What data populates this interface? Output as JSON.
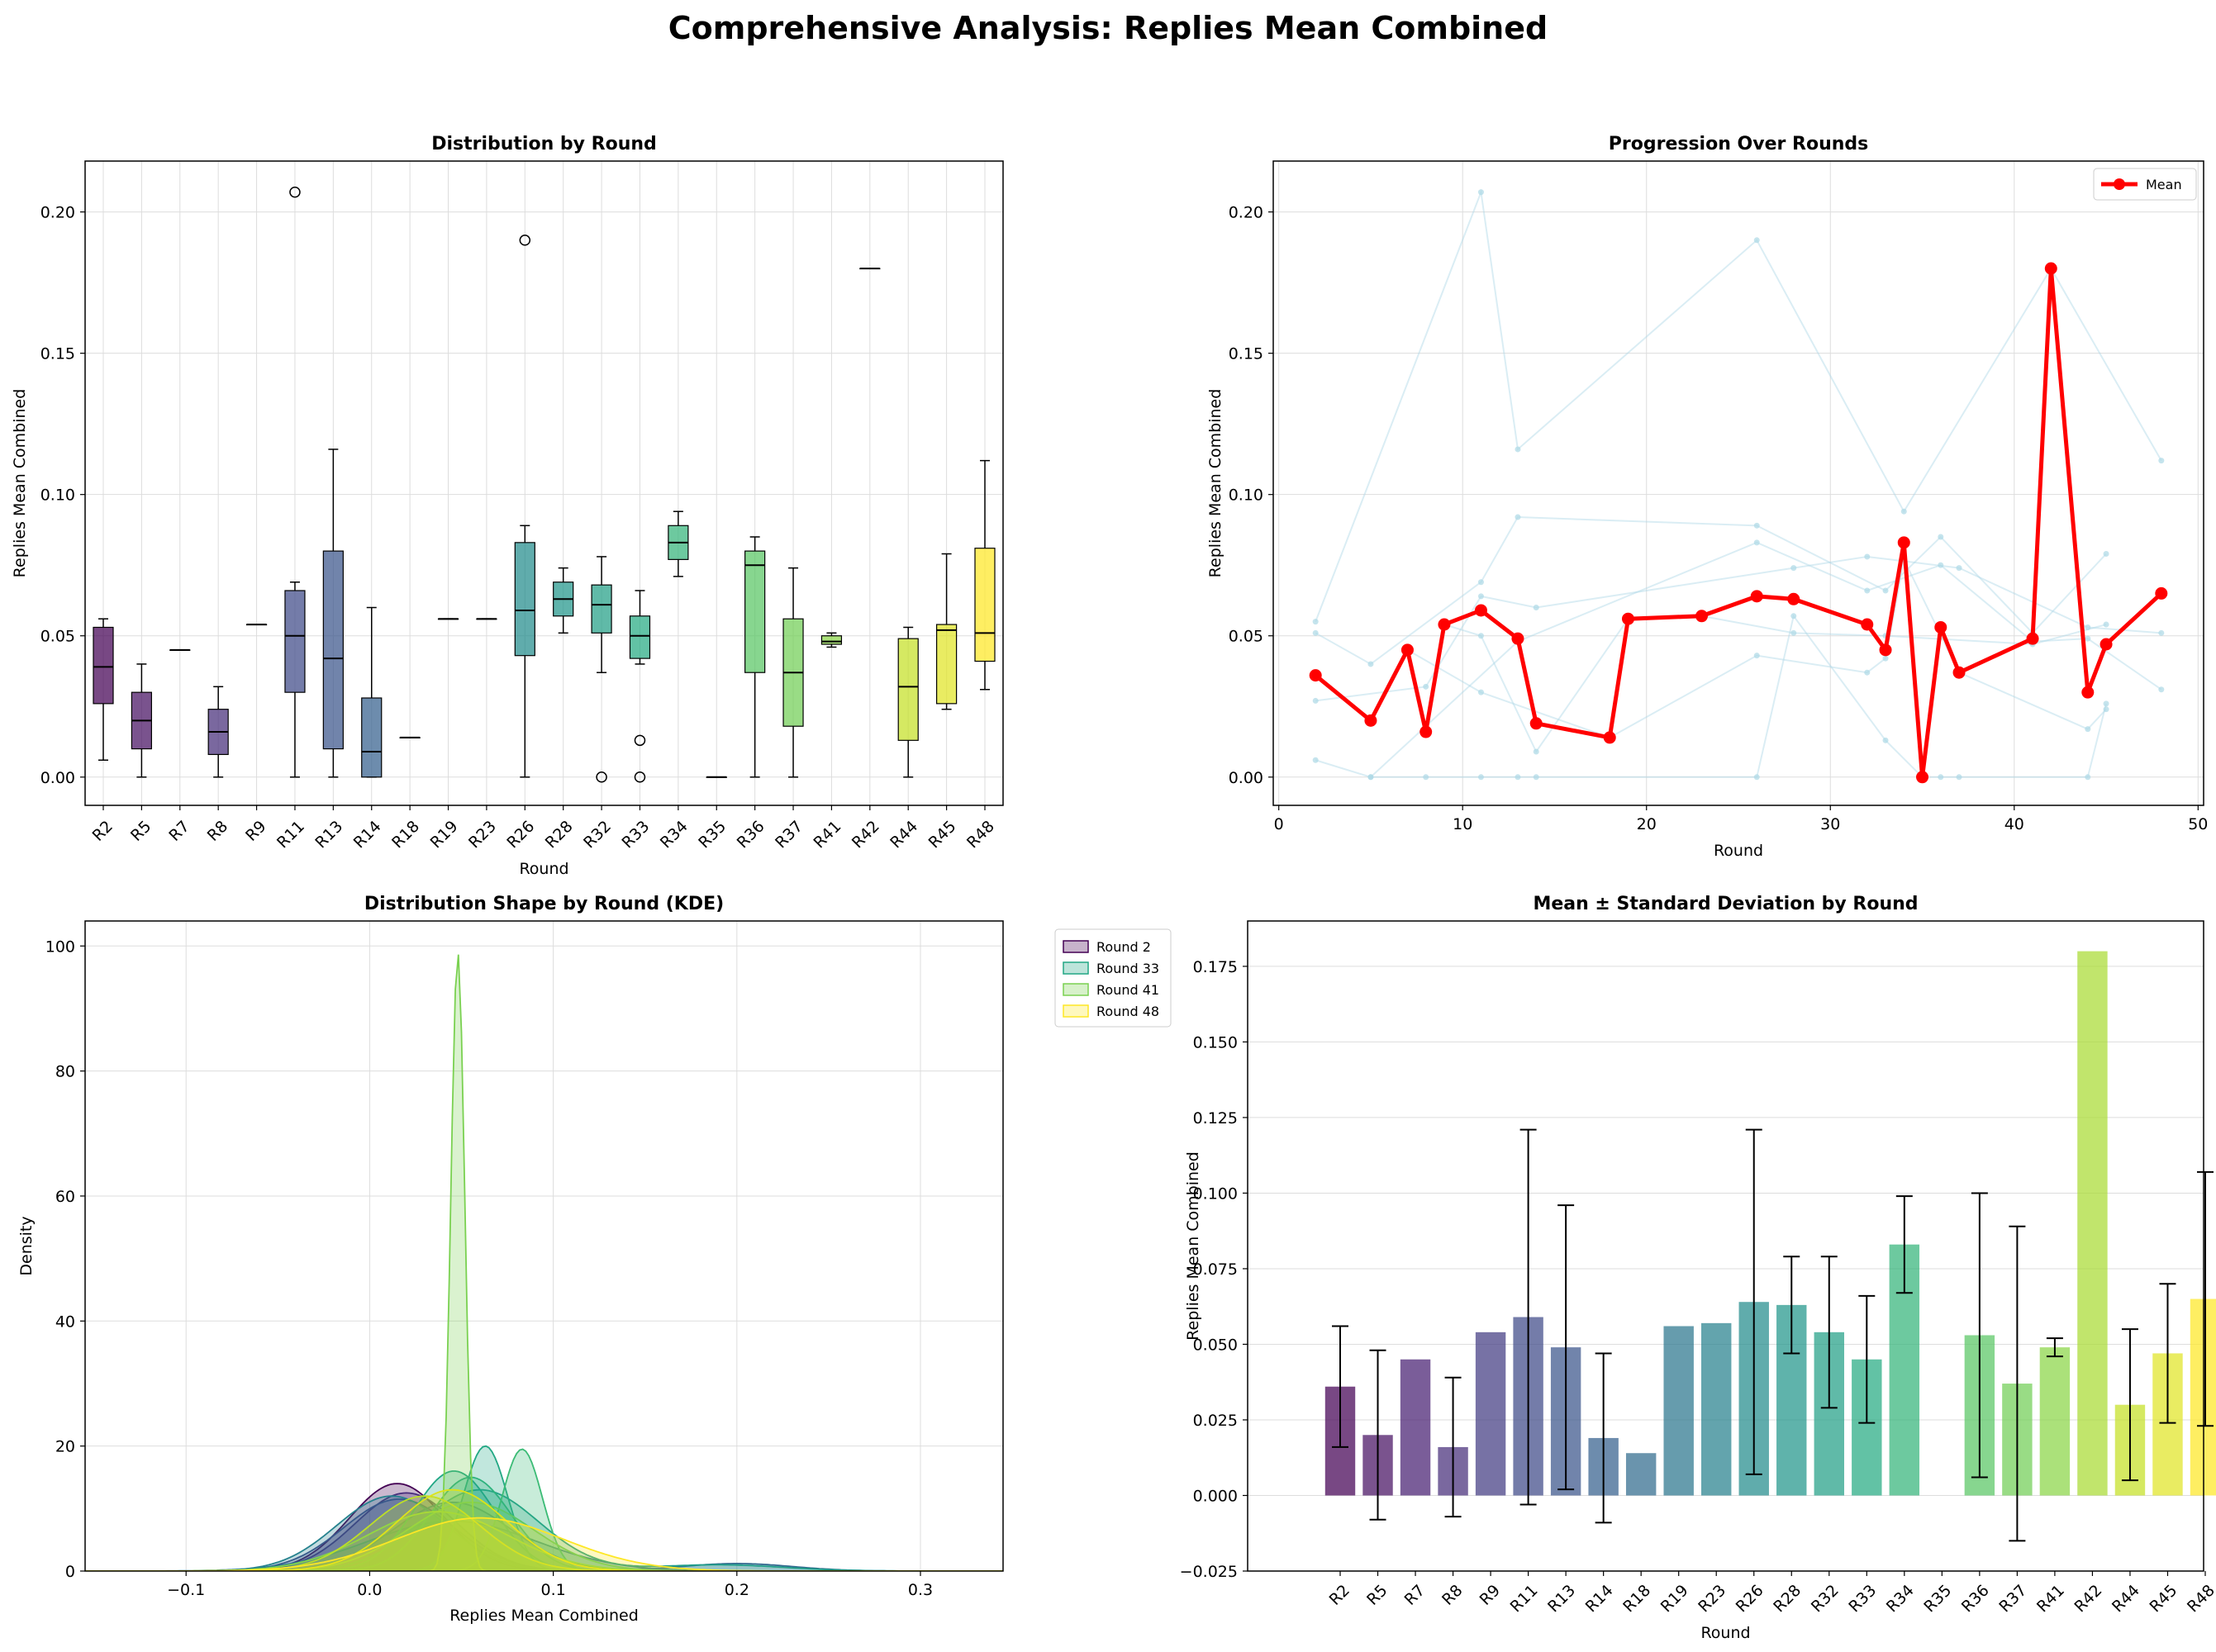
{
  "figure": {
    "suptitle": "Comprehensive Analysis: Replies Mean Combined"
  },
  "colors": {
    "viridis": [
      "#440154",
      "#482475",
      "#414487",
      "#355f8d",
      "#2a788e",
      "#21918c",
      "#22a884",
      "#44bf70",
      "#7ad151",
      "#bddf26",
      "#fde725"
    ],
    "mean_line": "#ff0000",
    "trajectory": "#add8e6",
    "grid": "#dddddd"
  },
  "rounds": [
    "R2",
    "R5",
    "R7",
    "R8",
    "R9",
    "R11",
    "R13",
    "R14",
    "R18",
    "R19",
    "R23",
    "R26",
    "R28",
    "R32",
    "R33",
    "R34",
    "R35",
    "R36",
    "R37",
    "R41",
    "R42",
    "R44",
    "R45",
    "R48"
  ],
  "round_numbers": [
    2,
    5,
    7,
    8,
    9,
    11,
    13,
    14,
    18,
    19,
    23,
    26,
    28,
    32,
    33,
    34,
    35,
    36,
    37,
    41,
    42,
    44,
    45,
    48
  ],
  "chart_data": [
    {
      "type": "box",
      "title": "Distribution by Round",
      "xlabel": "Round",
      "ylabel": "Replies Mean Combined",
      "ylim": [
        -0.01,
        0.218
      ],
      "yticks": [
        0.0,
        0.05,
        0.1,
        0.15,
        0.2
      ],
      "ytick_labels": [
        "0.00",
        "0.05",
        "0.10",
        "0.15",
        "0.20"
      ],
      "grid": true,
      "boxes": [
        {
          "round": "R2",
          "whislo": 0.006,
          "q1": 0.026,
          "median": 0.039,
          "q3": 0.053,
          "whishi": 0.056,
          "fliers": []
        },
        {
          "round": "R5",
          "whislo": 0.0,
          "q1": 0.01,
          "median": 0.02,
          "q3": 0.03,
          "whishi": 0.04,
          "fliers": []
        },
        {
          "round": "R7",
          "whislo": 0.045,
          "q1": 0.045,
          "median": 0.045,
          "q3": 0.045,
          "whishi": 0.045,
          "fliers": []
        },
        {
          "round": "R8",
          "whislo": 0.0,
          "q1": 0.008,
          "median": 0.016,
          "q3": 0.024,
          "whishi": 0.032,
          "fliers": []
        },
        {
          "round": "R9",
          "whislo": 0.054,
          "q1": 0.054,
          "median": 0.054,
          "q3": 0.054,
          "whishi": 0.054,
          "fliers": []
        },
        {
          "round": "R11",
          "whislo": 0.0,
          "q1": 0.03,
          "median": 0.05,
          "q3": 0.066,
          "whishi": 0.069,
          "fliers": [
            0.207
          ]
        },
        {
          "round": "R13",
          "whislo": 0.0,
          "q1": 0.01,
          "median": 0.042,
          "q3": 0.08,
          "whishi": 0.116,
          "fliers": []
        },
        {
          "round": "R14",
          "whislo": 0.0,
          "q1": 0.0,
          "median": 0.009,
          "q3": 0.028,
          "whishi": 0.06,
          "fliers": []
        },
        {
          "round": "R18",
          "whislo": 0.014,
          "q1": 0.014,
          "median": 0.014,
          "q3": 0.014,
          "whishi": 0.014,
          "fliers": []
        },
        {
          "round": "R19",
          "whislo": 0.056,
          "q1": 0.056,
          "median": 0.056,
          "q3": 0.056,
          "whishi": 0.056,
          "fliers": []
        },
        {
          "round": "R23",
          "whislo": 0.056,
          "q1": 0.056,
          "median": 0.056,
          "q3": 0.056,
          "whishi": 0.056,
          "fliers": []
        },
        {
          "round": "R26",
          "whislo": 0.0,
          "q1": 0.043,
          "median": 0.059,
          "q3": 0.083,
          "whishi": 0.089,
          "fliers": [
            0.19
          ]
        },
        {
          "round": "R28",
          "whislo": 0.051,
          "q1": 0.057,
          "median": 0.063,
          "q3": 0.069,
          "whishi": 0.074,
          "fliers": []
        },
        {
          "round": "R32",
          "whislo": 0.037,
          "q1": 0.051,
          "median": 0.061,
          "q3": 0.068,
          "whishi": 0.078,
          "fliers": [
            0.0
          ]
        },
        {
          "round": "R33",
          "whislo": 0.04,
          "q1": 0.042,
          "median": 0.05,
          "q3": 0.057,
          "whishi": 0.066,
          "fliers": [
            0.013,
            0.0
          ]
        },
        {
          "round": "R34",
          "whislo": 0.071,
          "q1": 0.077,
          "median": 0.083,
          "q3": 0.089,
          "whishi": 0.094,
          "fliers": []
        },
        {
          "round": "R35",
          "whislo": 0.0,
          "q1": 0.0,
          "median": 0.0,
          "q3": 0.0,
          "whishi": 0.0,
          "fliers": []
        },
        {
          "round": "R36",
          "whislo": 0.0,
          "q1": 0.037,
          "median": 0.075,
          "q3": 0.08,
          "whishi": 0.085,
          "fliers": []
        },
        {
          "round": "R37",
          "whislo": 0.0,
          "q1": 0.018,
          "median": 0.037,
          "q3": 0.056,
          "whishi": 0.074,
          "fliers": []
        },
        {
          "round": "R41",
          "whislo": 0.046,
          "q1": 0.047,
          "median": 0.048,
          "q3": 0.05,
          "whishi": 0.051,
          "fliers": []
        },
        {
          "round": "R42",
          "whislo": 0.18,
          "q1": 0.18,
          "median": 0.18,
          "q3": 0.18,
          "whishi": 0.18,
          "fliers": []
        },
        {
          "round": "R44",
          "whislo": 0.0,
          "q1": 0.013,
          "median": 0.032,
          "q3": 0.049,
          "whishi": 0.053,
          "fliers": []
        },
        {
          "round": "R45",
          "whislo": 0.024,
          "q1": 0.026,
          "median": 0.052,
          "q3": 0.054,
          "whishi": 0.079,
          "fliers": []
        },
        {
          "round": "R48",
          "whislo": 0.031,
          "q1": 0.041,
          "median": 0.051,
          "q3": 0.081,
          "whishi": 0.112,
          "fliers": []
        }
      ]
    },
    {
      "type": "line",
      "title": "Progression Over Rounds",
      "xlabel": "Round",
      "ylabel": "Replies Mean Combined",
      "xlim": [
        -0.3,
        50.3
      ],
      "ylim": [
        -0.01,
        0.218
      ],
      "xticks": [
        0,
        10,
        20,
        30,
        40,
        50
      ],
      "yticks": [
        0.0,
        0.05,
        0.1,
        0.15,
        0.2
      ],
      "ytick_labels": [
        "0.00",
        "0.05",
        "0.10",
        "0.15",
        "0.20"
      ],
      "grid": true,
      "legend": "top-right",
      "series": [
        {
          "name": "Mean",
          "x": [
            2,
            5,
            7,
            8,
            9,
            11,
            13,
            14,
            18,
            19,
            23,
            26,
            28,
            32,
            33,
            34,
            35,
            36,
            37,
            41,
            42,
            44,
            45,
            48
          ],
          "y": [
            0.036,
            0.02,
            0.045,
            0.016,
            0.054,
            0.059,
            0.049,
            0.019,
            0.014,
            0.056,
            0.057,
            0.064,
            0.063,
            0.054,
            0.045,
            0.083,
            0.0,
            0.053,
            0.037,
            0.049,
            0.18,
            0.03,
            0.047,
            0.065
          ]
        }
      ],
      "trajectories": [
        {
          "x": [
            2,
            11,
            13,
            26,
            34,
            42,
            48
          ],
          "y": [
            0.055,
            0.207,
            0.116,
            0.19,
            0.094,
            0.18,
            0.112
          ]
        },
        {
          "x": [
            2,
            5,
            11,
            13,
            26,
            33,
            36,
            41,
            45
          ],
          "y": [
            0.051,
            0.04,
            0.069,
            0.092,
            0.089,
            0.066,
            0.085,
            0.051,
            0.079
          ]
        },
        {
          "x": [
            2,
            8,
            11,
            14,
            28,
            32,
            37,
            44,
            48
          ],
          "y": [
            0.027,
            0.032,
            0.064,
            0.06,
            0.074,
            0.078,
            0.074,
            0.053,
            0.051
          ]
        },
        {
          "x": [
            2,
            5,
            13,
            26,
            32,
            36,
            41,
            44,
            48
          ],
          "y": [
            0.006,
            0.0,
            0.048,
            0.083,
            0.066,
            0.075,
            0.048,
            0.049,
            0.031
          ]
        },
        {
          "x": [
            5,
            8,
            11,
            13,
            14,
            26,
            28,
            33,
            35,
            36,
            37,
            44,
            45
          ],
          "y": [
            0.0,
            0.0,
            0.0,
            0.0,
            0.0,
            0.0,
            0.057,
            0.013,
            0.0,
            0.0,
            0.0,
            0.0,
            0.026
          ]
        },
        {
          "x": [
            9,
            11,
            14,
            19,
            23,
            28,
            33,
            41,
            45
          ],
          "y": [
            0.054,
            0.05,
            0.009,
            0.056,
            0.057,
            0.051,
            0.05,
            0.047,
            0.054
          ]
        },
        {
          "x": [
            7,
            11,
            18,
            26,
            32,
            33,
            34,
            37,
            44,
            45
          ],
          "y": [
            0.045,
            0.03,
            0.014,
            0.043,
            0.037,
            0.042,
            0.077,
            0.037,
            0.017,
            0.024
          ]
        }
      ]
    },
    {
      "type": "area",
      "title": "Distribution Shape by Round (KDE)",
      "xlabel": "Replies Mean Combined",
      "ylabel": "Density",
      "xlim": [
        -0.155,
        0.345
      ],
      "ylim": [
        0,
        104
      ],
      "xticks": [
        -0.1,
        0.0,
        0.1,
        0.2,
        0.3
      ],
      "xtick_labels": [
        "−0.1",
        "0.0",
        "0.1",
        "0.2",
        "0.3"
      ],
      "yticks": [
        0,
        20,
        40,
        60,
        80,
        100
      ],
      "grid": true,
      "legend": "outside-right",
      "legend_entries": [
        {
          "label": "Round 2",
          "color": "#440154"
        },
        {
          "label": "Round 33",
          "color": "#21a784"
        },
        {
          "label": "Round 41",
          "color": "#7ad151"
        },
        {
          "label": "Round 48",
          "color": "#fde725"
        }
      ],
      "curves": [
        {
          "round": 2,
          "color": "#440154",
          "components": [
            {
              "mu": 0.015,
              "sigma": 0.026,
              "peak": 14
            }
          ]
        },
        {
          "round": 5,
          "color": "#472d7b",
          "components": [
            {
              "mu": 0.02,
              "sigma": 0.028,
              "peak": 12.5
            }
          ]
        },
        {
          "round": 8,
          "color": "#3e4989",
          "components": [
            {
              "mu": 0.016,
              "sigma": 0.03,
              "peak": 11.5
            }
          ]
        },
        {
          "round": 11,
          "color": "#31688e",
          "components": [
            {
              "mu": 0.045,
              "sigma": 0.032,
              "peak": 11
            },
            {
              "mu": 0.2,
              "sigma": 0.03,
              "peak": 1.2
            }
          ]
        },
        {
          "round": 13,
          "color": "#2a788e",
          "components": [
            {
              "mu": 0.045,
              "sigma": 0.045,
              "peak": 8
            }
          ]
        },
        {
          "round": 14,
          "color": "#26828e",
          "components": [
            {
              "mu": 0.012,
              "sigma": 0.03,
              "peak": 12
            }
          ]
        },
        {
          "round": 26,
          "color": "#1f9e89",
          "components": [
            {
              "mu": 0.06,
              "sigma": 0.032,
              "peak": 13
            },
            {
              "mu": 0.19,
              "sigma": 0.035,
              "peak": 1.0
            }
          ]
        },
        {
          "round": 28,
          "color": "#22a884",
          "components": [
            {
              "mu": 0.063,
              "sigma": 0.012,
              "peak": 20
            }
          ]
        },
        {
          "round": 32,
          "color": "#2db27d",
          "components": [
            {
              "mu": 0.055,
              "sigma": 0.022,
              "peak": 15
            }
          ]
        },
        {
          "round": 33,
          "color": "#21a784",
          "components": [
            {
              "mu": 0.046,
              "sigma": 0.022,
              "peak": 16
            }
          ]
        },
        {
          "round": 34,
          "color": "#3bbb75",
          "components": [
            {
              "mu": 0.083,
              "sigma": 0.011,
              "peak": 19.5
            }
          ]
        },
        {
          "round": 36,
          "color": "#5ec962",
          "components": [
            {
              "mu": 0.055,
              "sigma": 0.034,
              "peak": 11
            }
          ]
        },
        {
          "round": 37,
          "color": "#84d44b",
          "components": [
            {
              "mu": 0.037,
              "sigma": 0.038,
              "peak": 9.5
            }
          ]
        },
        {
          "round": 41,
          "color": "#7ad151",
          "components": [
            {
              "mu": 0.048,
              "sigma": 0.0038,
              "peak": 99
            }
          ]
        },
        {
          "round": 44,
          "color": "#bddf26",
          "components": [
            {
              "mu": 0.03,
              "sigma": 0.03,
              "peak": 12
            }
          ]
        },
        {
          "round": 45,
          "color": "#dde318",
          "components": [
            {
              "mu": 0.045,
              "sigma": 0.03,
              "peak": 13
            }
          ]
        },
        {
          "round": 48,
          "color": "#fde725",
          "components": [
            {
              "mu": 0.06,
              "sigma": 0.045,
              "peak": 8.5
            }
          ]
        }
      ]
    },
    {
      "type": "bar",
      "title": "Mean ± Standard Deviation by Round",
      "xlabel": "Round",
      "ylabel": "Replies Mean Combined",
      "ylim": [
        -0.025,
        0.19
      ],
      "yticks": [
        -0.025,
        0.0,
        0.025,
        0.05,
        0.075,
        0.1,
        0.125,
        0.15,
        0.175
      ],
      "ytick_labels": [
        "−0.025",
        "0.000",
        "0.025",
        "0.050",
        "0.075",
        "0.100",
        "0.125",
        "0.150",
        "0.175"
      ],
      "grid": true,
      "categories": [
        "R2",
        "R5",
        "R7",
        "R8",
        "R9",
        "R11",
        "R13",
        "R14",
        "R18",
        "R19",
        "R23",
        "R26",
        "R28",
        "R32",
        "R33",
        "R34",
        "R35",
        "R36",
        "R37",
        "R41",
        "R42",
        "R44",
        "R45",
        "R48"
      ],
      "values": [
        0.036,
        0.02,
        0.045,
        0.016,
        0.054,
        0.059,
        0.049,
        0.019,
        0.014,
        0.056,
        0.057,
        0.064,
        0.063,
        0.054,
        0.045,
        0.083,
        0.0,
        0.053,
        0.037,
        0.049,
        0.18,
        0.03,
        0.047,
        0.065
      ],
      "std": [
        0.02,
        0.028,
        null,
        0.023,
        null,
        0.062,
        0.047,
        0.028,
        null,
        null,
        null,
        0.057,
        0.016,
        0.025,
        0.021,
        0.016,
        null,
        0.047,
        0.052,
        0.003,
        null,
        0.025,
        0.023,
        0.042
      ]
    }
  ]
}
